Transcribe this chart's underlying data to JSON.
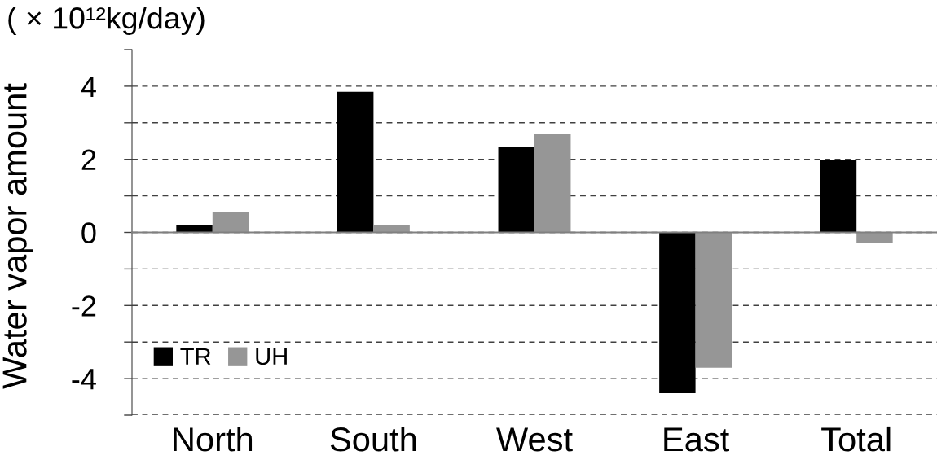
{
  "chart_data": {
    "type": "bar",
    "categories": [
      "North",
      "South",
      "West",
      "East",
      "Total"
    ],
    "series": [
      {
        "name": "TR",
        "color": "#000000",
        "values": [
          0.2,
          3.85,
          2.35,
          -4.4,
          1.97
        ]
      },
      {
        "name": "UH",
        "color": "#969696",
        "values": [
          0.55,
          0.2,
          2.7,
          -3.7,
          -0.3
        ]
      }
    ],
    "ylabel": "Water vapor amount",
    "annotations": [
      "( × 10¹²kg/day)"
    ],
    "ylim": [
      -5,
      5
    ],
    "yticks": [
      {
        "value": -5,
        "label": null
      },
      -4,
      {
        "value": -3,
        "label": null
      },
      -2,
      {
        "value": -1,
        "label": null
      },
      0,
      {
        "value": 1,
        "label": null
      },
      2,
      {
        "value": 3,
        "label": null
      },
      4,
      {
        "value": 5,
        "label": null
      }
    ],
    "grid": "y",
    "legend": "bottom left"
  }
}
